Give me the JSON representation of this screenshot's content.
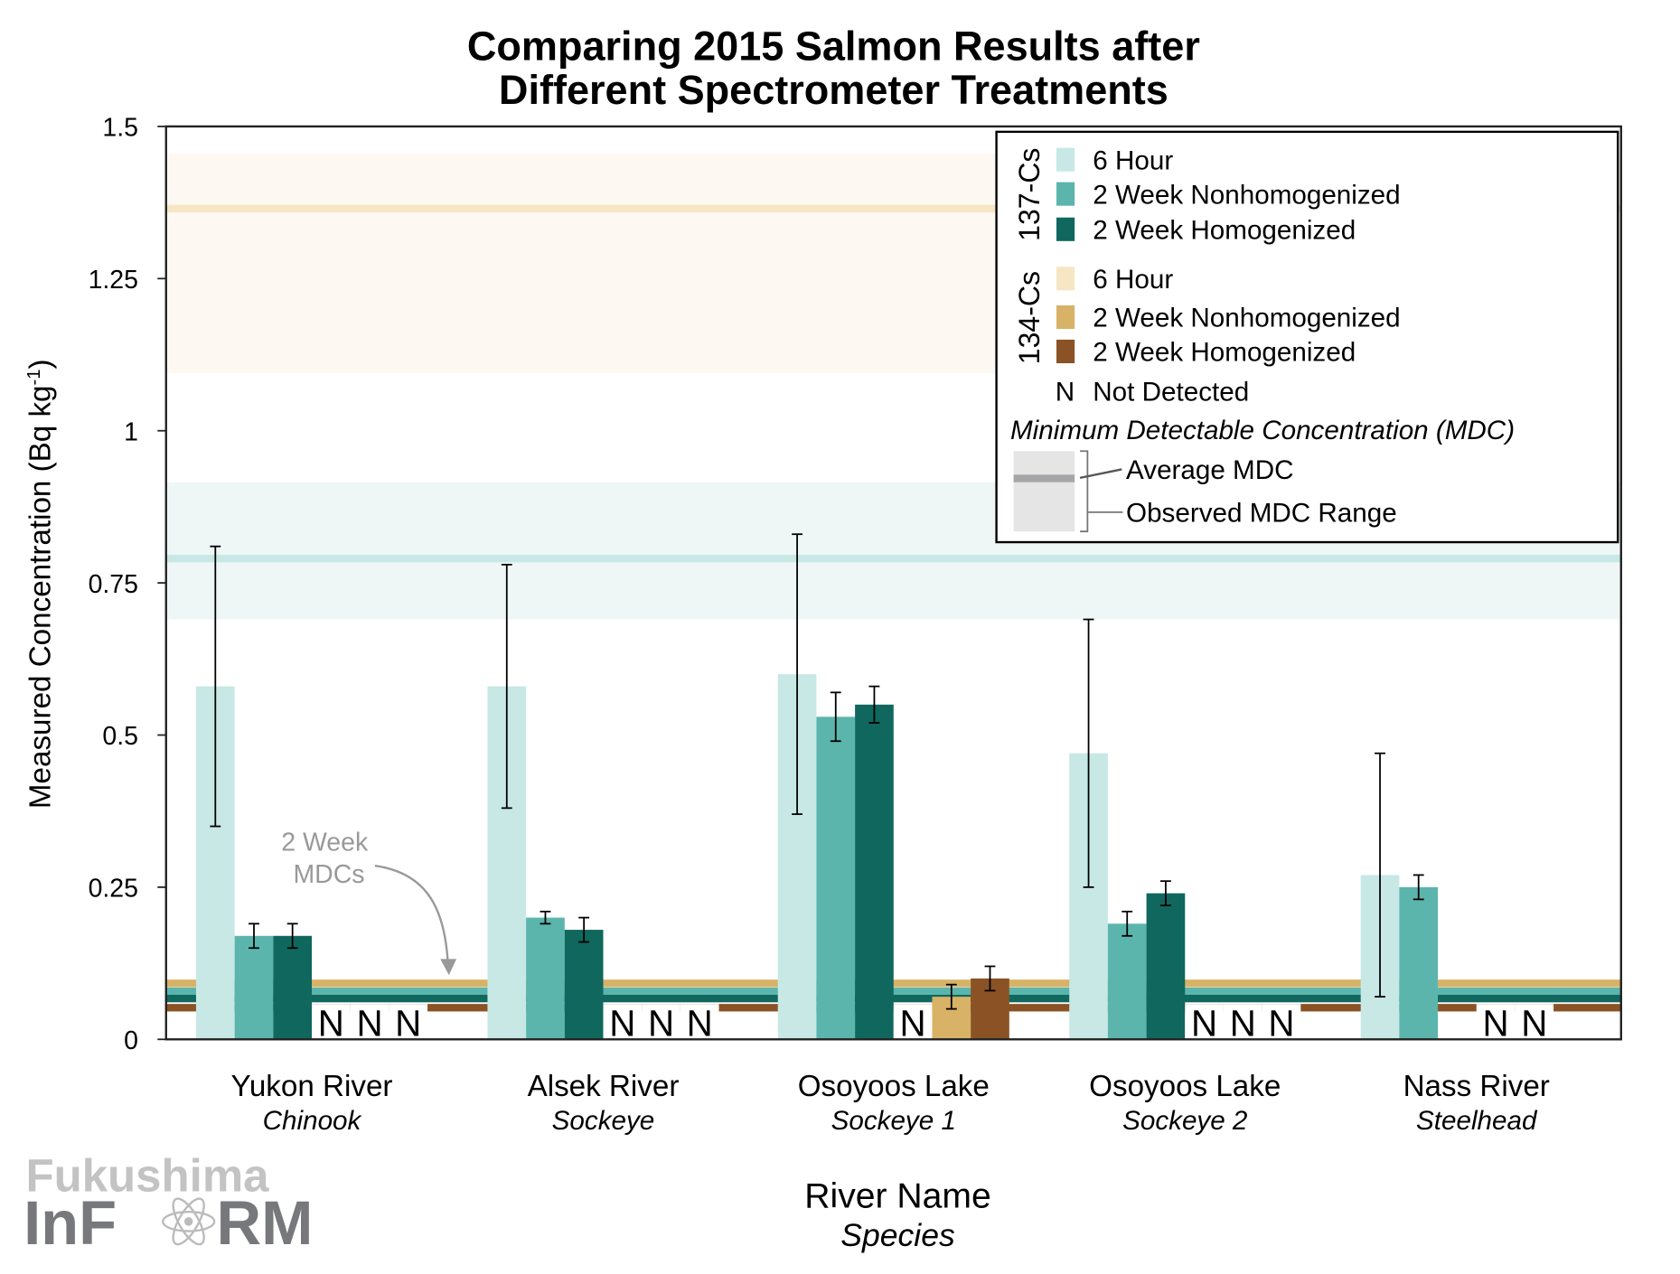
{
  "chart_data": {
    "type": "bar",
    "title": [
      "Comparing 2015 Salmon Results after",
      "Different Spectrometer Treatments"
    ],
    "xlabel": "River Name",
    "xlabel_sub": "Species",
    "ylabel": "Measured Concentration (Bq kg",
    "ylabel_sup": "-1",
    "ylabel_end": ")",
    "ylim": [
      0,
      1.5
    ],
    "yticks": [
      {
        "v": 0,
        "label": "0"
      },
      {
        "v": 0.25,
        "label": "0.25"
      },
      {
        "v": 0.5,
        "label": "0.5"
      },
      {
        "v": 0.75,
        "label": "0.75"
      },
      {
        "v": 1,
        "label": "1"
      },
      {
        "v": 1.25,
        "label": "1.25"
      },
      {
        "v": 1.5,
        "label": "1.5"
      }
    ],
    "categories": [
      {
        "name": "Yukon River",
        "species": "Chinook"
      },
      {
        "name": "Alsek River",
        "species": "Sockeye"
      },
      {
        "name": "Osoyoos Lake",
        "species": "Sockeye 1"
      },
      {
        "name": "Osoyoos Lake",
        "species": "Sockeye 2"
      },
      {
        "name": "Nass River",
        "species": "Steelhead"
      }
    ],
    "series": [
      {
        "name": "137-Cs 6 Hour",
        "color": "#c7e8e5",
        "values": [
          0.58,
          0.58,
          0.6,
          0.47,
          0.27
        ],
        "err": [
          [
            0.35,
            0.81
          ],
          [
            0.38,
            0.78
          ],
          [
            0.37,
            0.83
          ],
          [
            0.25,
            0.69
          ],
          [
            0.07,
            0.47
          ]
        ]
      },
      {
        "name": "137-Cs 2 Week Nonhomogenized",
        "color": "#5bb5ac",
        "values": [
          0.17,
          0.2,
          0.53,
          0.19,
          0.25
        ],
        "err": [
          [
            0.15,
            0.19
          ],
          [
            0.19,
            0.21
          ],
          [
            0.49,
            0.57
          ],
          [
            0.17,
            0.21
          ],
          [
            0.23,
            0.27
          ]
        ]
      },
      {
        "name": "137-Cs 2 Week Homogenized",
        "color": "#10675e",
        "values": [
          0.17,
          0.18,
          0.55,
          0.24,
          null
        ],
        "err": [
          [
            0.15,
            0.19
          ],
          [
            0.16,
            0.2
          ],
          [
            0.52,
            0.58
          ],
          [
            0.22,
            0.26
          ],
          null
        ]
      },
      {
        "name": "134-Cs 6 Hour",
        "color": "#f6e6c4",
        "values": [
          "N",
          "N",
          "N",
          "N",
          "N"
        ],
        "err": [
          null,
          null,
          null,
          null,
          null
        ]
      },
      {
        "name": "134-Cs 2 Week Nonhomogenized",
        "color": "#d8b266",
        "values": [
          "N",
          "N",
          0.07,
          "N",
          "N"
        ],
        "err": [
          null,
          null,
          [
            0.05,
            0.09
          ],
          null,
          null
        ]
      },
      {
        "name": "134-Cs 2 Week Homogenized",
        "color": "#8b5325",
        "values": [
          "N",
          "N",
          0.1,
          "N",
          null
        ],
        "err": [
          null,
          null,
          [
            0.08,
            0.12
          ],
          null,
          null
        ]
      }
    ],
    "mdc": [
      {
        "name": "137-Cs 6 Hour MDC",
        "avg": 0.79,
        "range": [
          0.69,
          0.915
        ],
        "line": "#c7e8e5",
        "band": "#eef7f6"
      },
      {
        "name": "134-Cs 6 Hour MDC",
        "avg": 1.365,
        "range": [
          1.095,
          1.455
        ],
        "line": "#f6e6c4",
        "band": "#fdf8f1"
      },
      {
        "name": "134-Cs 2 Week Nonhomogenized MDC",
        "avg": 0.092,
        "color": "#d8b266"
      },
      {
        "name": "137-Cs 2 Week Nonhomogenized MDC",
        "avg": 0.079,
        "color": "#5bb5ac"
      },
      {
        "name": "137-Cs 2 Week Homogenized MDC",
        "avg": 0.067,
        "color": "#10675e"
      },
      {
        "name": "134-Cs 2 Week Homogenized MDC",
        "avg": 0.052,
        "color": "#8b5325"
      }
    ],
    "annotation": [
      "2 Week",
      "MDCs"
    ],
    "not_detected_symbol": "N",
    "legend": {
      "placement": "top-right",
      "group1": "137-Cs",
      "group2": "134-Cs",
      "items137": [
        {
          "label": "6 Hour",
          "color": "#c7e8e5"
        },
        {
          "label": "2 Week Nonhomogenized",
          "color": "#5bb5ac"
        },
        {
          "label": "2 Week Homogenized",
          "color": "#10675e"
        }
      ],
      "items134": [
        {
          "label": "6 Hour",
          "color": "#f6e6c4"
        },
        {
          "label": "2 Week Nonhomogenized",
          "color": "#d8b266"
        },
        {
          "label": "2 Week Homogenized",
          "color": "#8b5325"
        }
      ],
      "nd_symbol": "N",
      "nd_label": "Not Detected",
      "mdc_title": "Minimum Detectable Concentration (MDC)",
      "avg_label": "Average MDC",
      "range_label": "Observed MDC Range"
    }
  },
  "logo": {
    "line1": "Fukushima",
    "line2a": "InF",
    "line2b": "RM"
  }
}
